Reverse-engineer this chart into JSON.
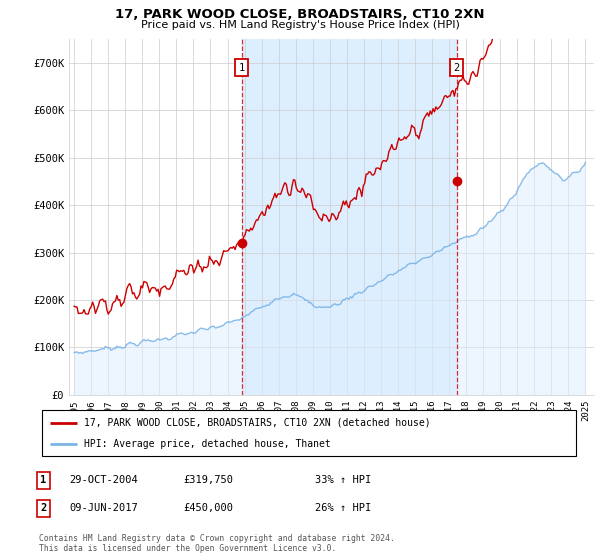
{
  "title": "17, PARK WOOD CLOSE, BROADSTAIRS, CT10 2XN",
  "subtitle": "Price paid vs. HM Land Registry's House Price Index (HPI)",
  "ylabel_ticks": [
    "£0",
    "£100K",
    "£200K",
    "£300K",
    "£400K",
    "£500K",
    "£600K",
    "£700K"
  ],
  "ytick_values": [
    0,
    100000,
    200000,
    300000,
    400000,
    500000,
    600000,
    700000
  ],
  "ylim": [
    0,
    750000
  ],
  "xlim_start": 1994.7,
  "xlim_end": 2025.5,
  "sale1_x": 2004.83,
  "sale1_y": 319750,
  "sale2_x": 2017.44,
  "sale2_y": 450000,
  "hpi_color": "#7ab4e8",
  "hpi_fill_color": "#ddeeff",
  "price_color": "#cc0000",
  "dashed_color": "#cc0000",
  "shade_color": "#ddeeff",
  "grid_color": "#cccccc",
  "bg_color": "#ffffff",
  "legend_label1": "17, PARK WOOD CLOSE, BROADSTAIRS, CT10 2XN (detached house)",
  "legend_label2": "HPI: Average price, detached house, Thanet",
  "footnote": "Contains HM Land Registry data © Crown copyright and database right 2024.\nThis data is licensed under the Open Government Licence v3.0.",
  "table_rows": [
    {
      "num": "1",
      "date": "29-OCT-2004",
      "price": "£319,750",
      "hpi": "33% ↑ HPI"
    },
    {
      "num": "2",
      "date": "09-JUN-2017",
      "price": "£450,000",
      "hpi": "26% ↑ HPI"
    }
  ]
}
